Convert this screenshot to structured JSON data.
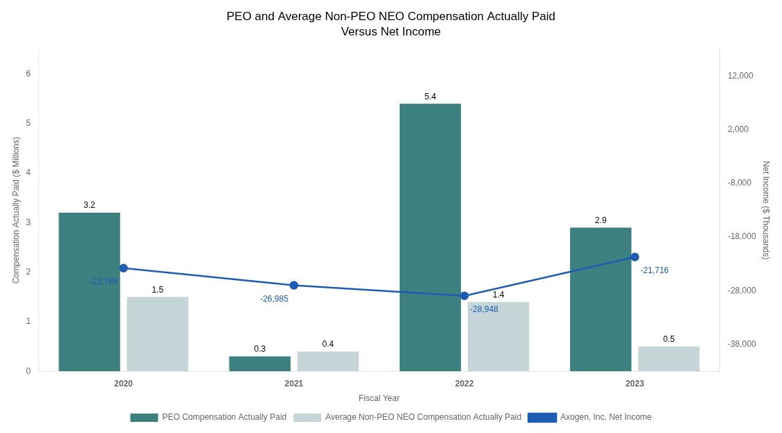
{
  "chart_data": {
    "type": "bar",
    "title": "PEO and Average Non-PEO NEO Compensation Actually Paid",
    "subtitle": "Versus Net Income",
    "categories": [
      "2020",
      "2021",
      "2022",
      "2023"
    ],
    "series": [
      {
        "name": "PEO Compensation Actually Paid",
        "type": "bar",
        "color": "#3d8080",
        "values": [
          3.2,
          0.3,
          5.4,
          2.9
        ]
      },
      {
        "name": "Average Non-PEO NEO Compensation Actually Paid",
        "type": "bar",
        "color": "#c5d5d8",
        "values": [
          1.5,
          0.4,
          1.4,
          0.5
        ]
      },
      {
        "name": "Axogen, Inc. Net Income",
        "type": "line",
        "axis": "y2",
        "color": "#1e5cb3",
        "marker": "circle",
        "line_style": "solid",
        "values": [
          -23786,
          -26985,
          -28948,
          -21716
        ],
        "value_labels": [
          "-23,786",
          "-26,985",
          "-28,948",
          "-21,716"
        ]
      }
    ],
    "xlabel": "Fiscal Year",
    "ylabel": "Compensation Actually Paid ($ Millions)",
    "y2label": "Net Income ($ Thousands)",
    "ylim": [
      0,
      6.5
    ],
    "yticks": [
      0,
      1,
      2,
      3,
      4,
      5,
      6
    ],
    "y2lim": [
      -43000,
      17000
    ],
    "y2ticks": [
      {
        "value": 12000,
        "label": "12,000"
      },
      {
        "value": 2000,
        "label": "2,000"
      },
      {
        "value": -8000,
        "label": "-8,000"
      },
      {
        "value": -18000,
        "label": "-18,000"
      },
      {
        "value": -28000,
        "label": "-28,000"
      },
      {
        "value": -38000,
        "label": "-38,000"
      }
    ],
    "grid": false,
    "legend": "bottom",
    "data_labels": true
  }
}
